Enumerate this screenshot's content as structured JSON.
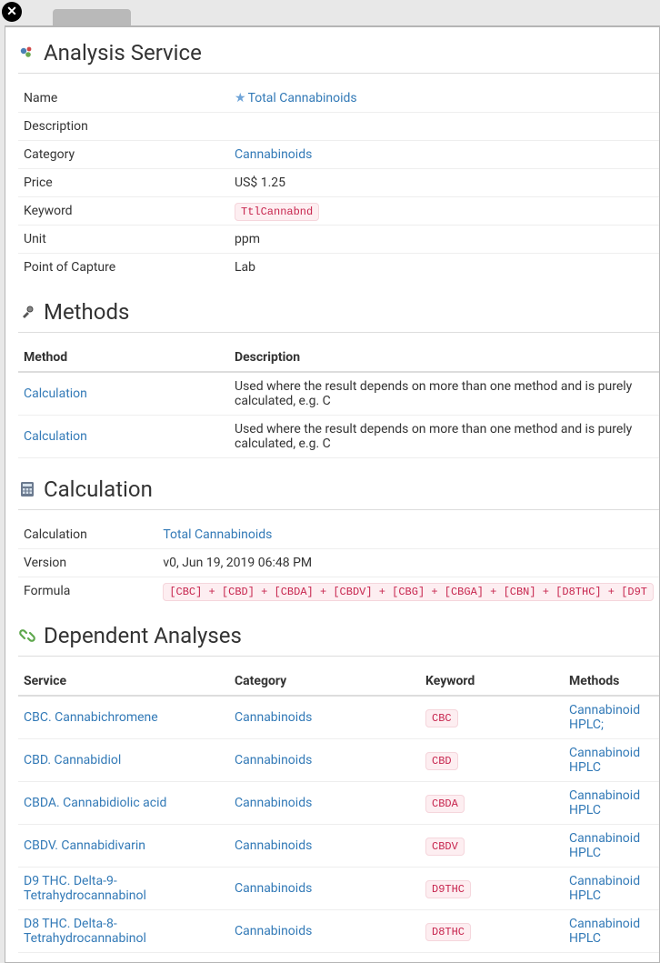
{
  "colors": {
    "link": "#337ab7",
    "code_bg": "#fdeef1",
    "code_fg": "#c7254e",
    "border": "#dddddd",
    "row_border": "#eeeeee"
  },
  "sections": {
    "analysis_service": {
      "title": "Analysis Service",
      "fields": {
        "name_label": "Name",
        "name_value": "Total Cannabinoids",
        "name_starred": true,
        "description_label": "Description",
        "description_value": "",
        "category_label": "Category",
        "category_value": "Cannabinoids",
        "price_label": "Price",
        "price_value": "US$ 1.25",
        "keyword_label": "Keyword",
        "keyword_value": "TtlCannabnd",
        "unit_label": "Unit",
        "unit_value": "ppm",
        "poc_label": "Point of Capture",
        "poc_value": "Lab"
      }
    },
    "methods": {
      "title": "Methods",
      "columns": {
        "method": "Method",
        "description": "Description"
      },
      "rows": [
        {
          "method": "Calculation",
          "description": "Used where the result depends on more than one method and is purely calculated, e.g. C"
        },
        {
          "method": "Calculation",
          "description": "Used where the result depends on more than one method and is purely calculated, e.g. C"
        }
      ]
    },
    "calculation": {
      "title": "Calculation",
      "fields": {
        "calc_label": "Calculation",
        "calc_value": "Total Cannabinoids",
        "version_label": "Version",
        "version_value": "v0, Jun 19, 2019 06:48 PM",
        "formula_label": "Formula",
        "formula_value": "[CBC] + [CBD] + [CBDA] + [CBDV] + [CBG] + [CBGA] + [CBN] + [D8THC] + [D9T"
      }
    },
    "dependent": {
      "title": "Dependent Analyses",
      "columns": {
        "service": "Service",
        "category": "Category",
        "keyword": "Keyword",
        "methods": "Methods"
      },
      "col_widths": {
        "service": "232px",
        "category": "210px",
        "keyword": "158px",
        "methods": "auto"
      },
      "rows": [
        {
          "service": "CBC. Cannabichromene",
          "category": "Cannabinoids",
          "keyword": "CBC",
          "methods": "Cannabinoid HPLC;"
        },
        {
          "service": "CBD. Cannabidiol",
          "category": "Cannabinoids",
          "keyword": "CBD",
          "methods": "Cannabinoid HPLC"
        },
        {
          "service": "CBDA. Cannabidiolic acid",
          "category": "Cannabinoids",
          "keyword": "CBDA",
          "methods": "Cannabinoid HPLC"
        },
        {
          "service": "CBDV. Cannabidivarin",
          "category": "Cannabinoids",
          "keyword": "CBDV",
          "methods": "Cannabinoid HPLC"
        },
        {
          "service": "D9 THC. Delta-9-Tetrahydrocannabinol",
          "category": "Cannabinoids",
          "keyword": "D9THC",
          "methods": "Cannabinoid HPLC"
        },
        {
          "service": "D8 THC. Delta-8-Tetrahydrocannabinol",
          "category": "Cannabinoids",
          "keyword": "D8THC",
          "methods": "Cannabinoid HPLC"
        }
      ]
    }
  }
}
